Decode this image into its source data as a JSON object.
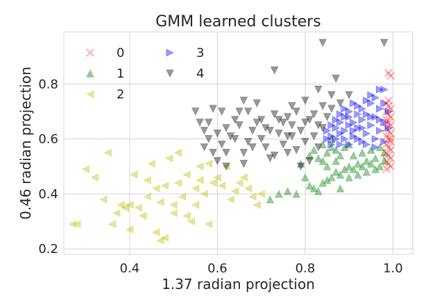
{
  "chart_data": {
    "type": "scatter",
    "title": "GMM learned clusters",
    "xlabel": "1.37 radian projection",
    "ylabel": "0.46 radian projection",
    "xlim": [
      0.25,
      1.045
    ],
    "ylim": [
      0.18,
      0.99
    ],
    "xticks": [
      "0.4",
      "0.6",
      "0.8",
      "1.0"
    ],
    "xtick_values": [
      0.4,
      0.6,
      0.8,
      1.0
    ],
    "yticks": [
      "0.2",
      "0.4",
      "0.6",
      "0.8"
    ],
    "ytick_values": [
      0.2,
      0.4,
      0.6,
      0.8
    ],
    "grid": true,
    "legend": {
      "placement": "top-left",
      "columns": 2
    },
    "series": [
      {
        "name": "0",
        "marker": "x",
        "color": "#ff0000",
        "points": [
          [
            0.99,
            0.84
          ],
          [
            0.995,
            0.83
          ],
          [
            0.985,
            0.73
          ],
          [
            0.99,
            0.72
          ],
          [
            0.995,
            0.71
          ],
          [
            0.985,
            0.7
          ],
          [
            0.99,
            0.69
          ],
          [
            0.995,
            0.68
          ],
          [
            0.985,
            0.67
          ],
          [
            0.99,
            0.66
          ],
          [
            0.995,
            0.65
          ],
          [
            0.985,
            0.64
          ],
          [
            0.99,
            0.63
          ],
          [
            0.995,
            0.62
          ],
          [
            0.985,
            0.61
          ],
          [
            0.99,
            0.6
          ],
          [
            0.995,
            0.59
          ],
          [
            0.985,
            0.58
          ],
          [
            0.99,
            0.57
          ],
          [
            0.995,
            0.56
          ],
          [
            0.985,
            0.55
          ],
          [
            0.99,
            0.54
          ],
          [
            0.995,
            0.53
          ],
          [
            0.985,
            0.52
          ],
          [
            0.99,
            0.51
          ],
          [
            0.995,
            0.5
          ],
          [
            0.985,
            0.49
          ],
          [
            0.99,
            0.74
          ],
          [
            0.995,
            0.6
          ],
          [
            0.985,
            0.66
          ]
        ]
      },
      {
        "name": "1",
        "marker": "triangle-up",
        "color": "#008000",
        "points": [
          [
            0.81,
            0.43
          ],
          [
            0.82,
            0.42
          ],
          [
            0.84,
            0.44
          ],
          [
            0.83,
            0.41
          ],
          [
            0.85,
            0.45
          ],
          [
            0.86,
            0.46
          ],
          [
            0.87,
            0.48
          ],
          [
            0.88,
            0.47
          ],
          [
            0.89,
            0.49
          ],
          [
            0.9,
            0.5
          ],
          [
            0.91,
            0.49
          ],
          [
            0.92,
            0.51
          ],
          [
            0.93,
            0.5
          ],
          [
            0.94,
            0.52
          ],
          [
            0.95,
            0.51
          ],
          [
            0.96,
            0.53
          ],
          [
            0.97,
            0.5
          ],
          [
            0.98,
            0.52
          ],
          [
            0.78,
            0.4
          ],
          [
            0.76,
            0.41
          ],
          [
            0.8,
            0.46
          ],
          [
            0.83,
            0.53
          ],
          [
            0.85,
            0.55
          ],
          [
            0.86,
            0.57
          ],
          [
            0.87,
            0.56
          ],
          [
            0.88,
            0.54
          ],
          [
            0.89,
            0.57
          ],
          [
            0.9,
            0.58
          ],
          [
            0.84,
            0.58
          ],
          [
            0.82,
            0.56
          ],
          [
            0.79,
            0.51
          ],
          [
            0.81,
            0.54
          ],
          [
            0.87,
            0.52
          ],
          [
            0.91,
            0.54
          ],
          [
            0.93,
            0.55
          ],
          [
            0.95,
            0.56
          ],
          [
            0.97,
            0.57
          ],
          [
            0.98,
            0.55
          ],
          [
            0.86,
            0.6
          ],
          [
            0.85,
            0.5
          ],
          [
            0.74,
            0.4
          ],
          [
            0.72,
            0.38
          ],
          [
            0.88,
            0.42
          ],
          [
            0.9,
            0.46
          ],
          [
            0.92,
            0.47
          ],
          [
            0.94,
            0.48
          ],
          [
            0.96,
            0.49
          ],
          [
            0.84,
            0.52
          ]
        ]
      },
      {
        "name": "2",
        "marker": "triangle-left",
        "color": "#bfbf00",
        "points": [
          [
            0.27,
            0.29
          ],
          [
            0.28,
            0.29
          ],
          [
            0.3,
            0.49
          ],
          [
            0.32,
            0.46
          ],
          [
            0.34,
            0.38
          ],
          [
            0.35,
            0.55
          ],
          [
            0.36,
            0.29
          ],
          [
            0.37,
            0.33
          ],
          [
            0.38,
            0.36
          ],
          [
            0.39,
            0.35
          ],
          [
            0.4,
            0.36
          ],
          [
            0.4,
            0.27
          ],
          [
            0.41,
            0.47
          ],
          [
            0.42,
            0.35
          ],
          [
            0.43,
            0.32
          ],
          [
            0.44,
            0.45
          ],
          [
            0.45,
            0.51
          ],
          [
            0.46,
            0.42
          ],
          [
            0.46,
            0.26
          ],
          [
            0.47,
            0.23
          ],
          [
            0.47,
            0.37
          ],
          [
            0.48,
            0.43
          ],
          [
            0.49,
            0.53
          ],
          [
            0.5,
            0.33
          ],
          [
            0.5,
            0.36
          ],
          [
            0.51,
            0.44
          ],
          [
            0.52,
            0.39
          ],
          [
            0.53,
            0.47
          ],
          [
            0.53,
            0.32
          ],
          [
            0.54,
            0.3
          ],
          [
            0.55,
            0.42
          ],
          [
            0.55,
            0.36
          ],
          [
            0.56,
            0.45
          ],
          [
            0.57,
            0.4
          ],
          [
            0.58,
            0.51
          ],
          [
            0.58,
            0.29
          ],
          [
            0.59,
            0.44
          ],
          [
            0.6,
            0.46
          ],
          [
            0.61,
            0.43
          ],
          [
            0.62,
            0.5
          ],
          [
            0.63,
            0.38
          ],
          [
            0.64,
            0.41
          ],
          [
            0.65,
            0.44
          ],
          [
            0.66,
            0.46
          ],
          [
            0.67,
            0.42
          ],
          [
            0.68,
            0.39
          ],
          [
            0.69,
            0.36
          ],
          [
            0.7,
            0.4
          ],
          [
            0.48,
            0.24
          ],
          [
            0.51,
            0.55
          ],
          [
            0.44,
            0.39
          ],
          [
            0.56,
            0.5
          ]
        ]
      },
      {
        "name": "3",
        "marker": "triangle-right",
        "color": "#0000ff",
        "points": [
          [
            0.85,
            0.63
          ],
          [
            0.86,
            0.65
          ],
          [
            0.86,
            0.61
          ],
          [
            0.87,
            0.6
          ],
          [
            0.87,
            0.64
          ],
          [
            0.88,
            0.66
          ],
          [
            0.88,
            0.62
          ],
          [
            0.89,
            0.68
          ],
          [
            0.89,
            0.63
          ],
          [
            0.9,
            0.65
          ],
          [
            0.9,
            0.7
          ],
          [
            0.91,
            0.61
          ],
          [
            0.91,
            0.66
          ],
          [
            0.92,
            0.72
          ],
          [
            0.92,
            0.64
          ],
          [
            0.93,
            0.59
          ],
          [
            0.93,
            0.67
          ],
          [
            0.94,
            0.69
          ],
          [
            0.94,
            0.62
          ],
          [
            0.95,
            0.73
          ],
          [
            0.95,
            0.65
          ],
          [
            0.96,
            0.6
          ],
          [
            0.96,
            0.68
          ],
          [
            0.97,
            0.71
          ],
          [
            0.97,
            0.63
          ],
          [
            0.98,
            0.66
          ],
          [
            0.98,
            0.78
          ],
          [
            0.97,
            0.78
          ],
          [
            0.96,
            0.75
          ],
          [
            0.95,
            0.76
          ],
          [
            0.94,
            0.74
          ],
          [
            0.93,
            0.71
          ],
          [
            0.92,
            0.69
          ],
          [
            0.91,
            0.73
          ],
          [
            0.9,
            0.68
          ],
          [
            0.89,
            0.71
          ],
          [
            0.88,
            0.69
          ],
          [
            0.87,
            0.67
          ],
          [
            0.86,
            0.58
          ],
          [
            0.88,
            0.58
          ],
          [
            0.9,
            0.58
          ],
          [
            0.92,
            0.6
          ],
          [
            0.94,
            0.58
          ],
          [
            0.96,
            0.57
          ],
          [
            0.98,
            0.59
          ],
          [
            0.85,
            0.6
          ],
          [
            0.99,
            0.64
          ],
          [
            0.99,
            0.7
          ],
          [
            0.95,
            0.68
          ],
          [
            0.93,
            0.64
          ],
          [
            0.91,
            0.63
          ],
          [
            0.89,
            0.6
          ],
          [
            0.97,
            0.67
          ],
          [
            0.98,
            0.73
          ]
        ]
      },
      {
        "name": "4",
        "marker": "triangle-down",
        "color": "#000000",
        "points": [
          [
            0.55,
            0.7
          ],
          [
            0.56,
            0.66
          ],
          [
            0.57,
            0.63
          ],
          [
            0.58,
            0.6
          ],
          [
            0.59,
            0.55
          ],
          [
            0.6,
            0.52
          ],
          [
            0.61,
            0.58
          ],
          [
            0.62,
            0.64
          ],
          [
            0.63,
            0.61
          ],
          [
            0.64,
            0.67
          ],
          [
            0.65,
            0.7
          ],
          [
            0.66,
            0.55
          ],
          [
            0.67,
            0.59
          ],
          [
            0.68,
            0.63
          ],
          [
            0.69,
            0.66
          ],
          [
            0.7,
            0.6
          ],
          [
            0.71,
            0.57
          ],
          [
            0.72,
            0.53
          ],
          [
            0.73,
            0.85
          ],
          [
            0.73,
            0.69
          ],
          [
            0.74,
            0.62
          ],
          [
            0.75,
            0.58
          ],
          [
            0.76,
            0.55
          ],
          [
            0.77,
            0.65
          ],
          [
            0.78,
            0.7
          ],
          [
            0.79,
            0.63
          ],
          [
            0.8,
            0.59
          ],
          [
            0.81,
            0.67
          ],
          [
            0.82,
            0.61
          ],
          [
            0.83,
            0.65
          ],
          [
            0.84,
            0.95
          ],
          [
            0.84,
            0.72
          ],
          [
            0.85,
            0.68
          ],
          [
            0.83,
            0.57
          ],
          [
            0.81,
            0.52
          ],
          [
            0.79,
            0.5
          ],
          [
            0.77,
            0.61
          ],
          [
            0.75,
            0.66
          ],
          [
            0.72,
            0.63
          ],
          [
            0.7,
            0.67
          ],
          [
            0.68,
            0.57
          ],
          [
            0.66,
            0.51
          ],
          [
            0.64,
            0.6
          ],
          [
            0.62,
            0.55
          ],
          [
            0.6,
            0.62
          ],
          [
            0.58,
            0.66
          ],
          [
            0.57,
            0.57
          ],
          [
            0.62,
            0.5
          ],
          [
            0.65,
            0.65
          ],
          [
            0.67,
            0.7
          ],
          [
            0.71,
            0.64
          ],
          [
            0.74,
            0.67
          ],
          [
            0.76,
            0.61
          ],
          [
            0.78,
            0.56
          ],
          [
            0.8,
            0.66
          ],
          [
            0.82,
            0.69
          ],
          [
            0.84,
            0.64
          ],
          [
            0.86,
            0.71
          ],
          [
            0.86,
            0.76
          ],
          [
            0.88,
            0.73
          ],
          [
            0.9,
            0.76
          ],
          [
            0.87,
            0.82
          ],
          [
            0.83,
            0.78
          ],
          [
            0.8,
            0.74
          ],
          [
            0.77,
            0.72
          ],
          [
            0.69,
            0.73
          ],
          [
            0.66,
            0.74
          ],
          [
            0.61,
            0.7
          ],
          [
            0.59,
            0.71
          ],
          [
            0.98,
            0.95
          ],
          [
            0.73,
            0.54
          ],
          [
            0.76,
            0.68
          ]
        ]
      }
    ]
  }
}
